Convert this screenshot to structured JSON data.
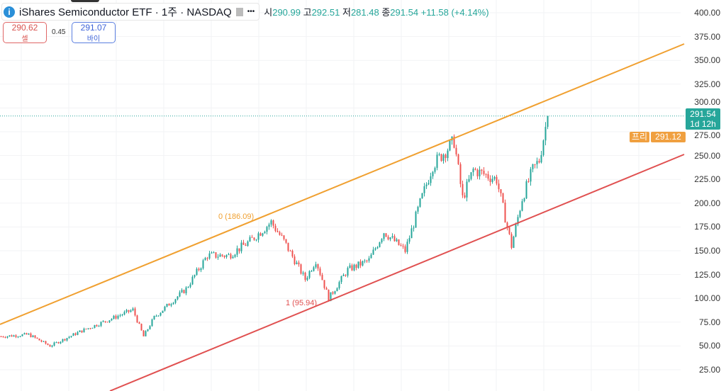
{
  "header": {
    "title": "iShares Semiconductor ETF · 1주 · NASDAQ",
    "more": "•••",
    "open_label": "시",
    "open": "290.99",
    "high_label": "고",
    "high": "292.51",
    "low_label": "저",
    "low": "281.48",
    "close_label": "종",
    "close": "291.54",
    "change": "+11.58 (+4.14%)"
  },
  "trade": {
    "sell_price": "290.62",
    "sell_label": "셀",
    "spread": "0.45",
    "buy_price": "291.07",
    "buy_label": "바이"
  },
  "price_label": {
    "price": "291.54",
    "countdown": "1d 12h",
    "pre_label": "프리",
    "pre_price": "291.12"
  },
  "chart_data": {
    "type": "candlestick",
    "y_ticks": [
      "400.00",
      "375.00",
      "350.00",
      "325.00",
      "300.00",
      "275.00",
      "250.00",
      "225.00",
      "200.00",
      "175.00",
      "150.00",
      "125.00",
      "100.00",
      "75.00",
      "50.00",
      "25.00"
    ],
    "ylim": [
      25,
      400
    ],
    "last_price": 291.54,
    "colors": {
      "up": "#26a69a",
      "down": "#ef5350",
      "upper_line": "#f0a030",
      "lower_line": "#e05050"
    },
    "price_path": [
      [
        0,
        60
      ],
      [
        13,
        62
      ],
      [
        23,
        50
      ],
      [
        37,
        65
      ],
      [
        62,
        88
      ],
      [
        67,
        60
      ],
      [
        72,
        80
      ],
      [
        87,
        110
      ],
      [
        97,
        145
      ],
      [
        107,
        145
      ],
      [
        117,
        160
      ],
      [
        127,
        180
      ],
      [
        133,
        160
      ],
      [
        143,
        120
      ],
      [
        148,
        140
      ],
      [
        154,
        100
      ],
      [
        163,
        130
      ],
      [
        173,
        140
      ],
      [
        180,
        170
      ],
      [
        190,
        150
      ],
      [
        197,
        200
      ],
      [
        203,
        240
      ],
      [
        213,
        265
      ],
      [
        217,
        205
      ],
      [
        222,
        235
      ],
      [
        233,
        225
      ],
      [
        240,
        155
      ],
      [
        245,
        205
      ],
      [
        250,
        235
      ],
      [
        253,
        245
      ],
      [
        257,
        291.54
      ]
    ],
    "fib_labels": [
      {
        "text": "0 (186.09)",
        "value": 186.09
      },
      {
        "text": "1 (95.94)",
        "value": 95.94
      }
    ]
  }
}
